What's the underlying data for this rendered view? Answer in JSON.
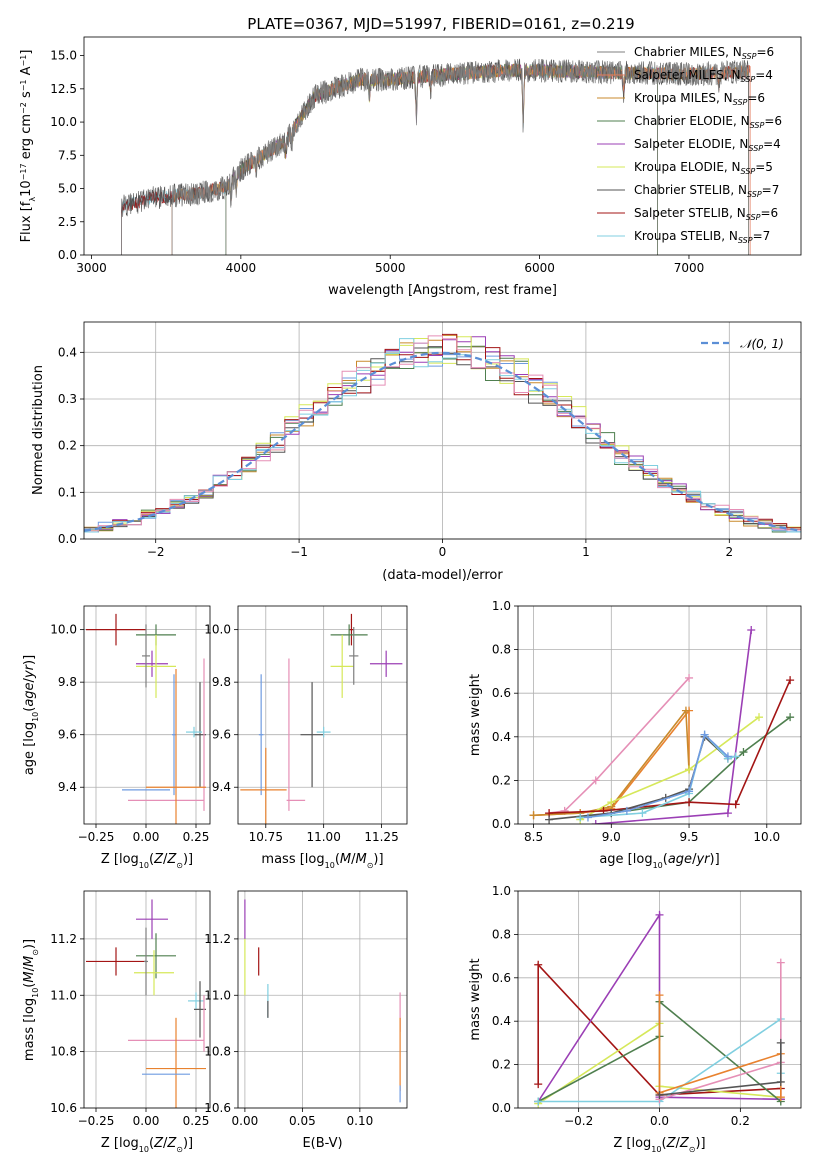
{
  "figure_title": "PLATE=0367, MJD=51997, FIBERID=0161, z=0.219",
  "colors": {
    "ChabrierMILES": "#7f7f7f",
    "SalpeterMILES": "#e37b5c",
    "KroupaMILES": "#c98a2c",
    "ChabrierELODIE": "#4f7f4f",
    "SalpeterELODIE": "#9b3fb5",
    "KroupaELODIE": "#d6e85a",
    "ChabrierSTELIB": "#555555",
    "SalpeterSTELIB": "#a31515",
    "KroupaSTELIB": "#80cfe0",
    "normal": "#5b8fd6",
    "pink": "#e58fb6",
    "blue": "#6f9be0",
    "orange": "#e8822f"
  },
  "chart_data": [
    {
      "id": "spectrum",
      "type": "line",
      "xlabel": "wavelength [Angstrom, rest frame]",
      "ylabel_parts": [
        "Flux [f",
        "λ",
        "10",
        "−17",
        " erg cm",
        "−2",
        " s",
        "−1",
        " A",
        "−1",
        "]"
      ],
      "xlim": [
        2950,
        7750
      ],
      "ylim": [
        0,
        16.4
      ],
      "xticks": [
        3000,
        4000,
        5000,
        6000,
        7000
      ],
      "yticks": [
        0.0,
        2.5,
        5.0,
        7.5,
        10.0,
        12.5,
        15.0
      ],
      "ytick_labels": [
        "0.0",
        "2.5",
        "5.0",
        "7.5",
        "10.0",
        "12.5",
        "15.0"
      ],
      "continuum": [
        [
          3200,
          3.6
        ],
        [
          3400,
          4.3
        ],
        [
          3700,
          4.6
        ],
        [
          3900,
          5.1
        ],
        [
          4000,
          6.4
        ],
        [
          4300,
          8.6
        ],
        [
          4500,
          12.0
        ],
        [
          4800,
          13.2
        ],
        [
          5000,
          13.2
        ],
        [
          5400,
          13.6
        ],
        [
          5800,
          13.9
        ],
        [
          6200,
          13.8
        ],
        [
          6600,
          13.7
        ],
        [
          7000,
          13.6
        ],
        [
          7400,
          13.8
        ]
      ],
      "legend": [
        {
          "key": "ChabrierMILES",
          "label": "Chabrier MILES, N",
          "sub": "SSP",
          "value": "=6"
        },
        {
          "key": "SalpeterMILES",
          "label": "Salpeter MILES, N",
          "sub": "SSP",
          "value": "=4"
        },
        {
          "key": "KroupaMILES",
          "label": "Kroupa MILES, N",
          "sub": "SSP",
          "value": "=6"
        },
        {
          "key": "ChabrierELODIE",
          "label": "Chabrier ELODIE, N",
          "sub": "SSP",
          "value": "=6"
        },
        {
          "key": "SalpeterELODIE",
          "label": "Salpeter ELODIE, N",
          "sub": "SSP",
          "value": "=4"
        },
        {
          "key": "KroupaELODIE",
          "label": "Kroupa ELODIE, N",
          "sub": "SSP",
          "value": "=5"
        },
        {
          "key": "ChabrierSTELIB",
          "label": "Chabrier STELIB, N",
          "sub": "SSP",
          "value": "=7"
        },
        {
          "key": "SalpeterSTELIB",
          "label": "Salpeter STELIB, N",
          "sub": "SSP",
          "value": "=6"
        },
        {
          "key": "KroupaSTELIB",
          "label": "Kroupa STELIB, N",
          "sub": "SSP",
          "value": "=7"
        }
      ]
    },
    {
      "id": "residuals",
      "type": "histogram",
      "xlabel": "(data-model)/error",
      "ylabel": "Normed distribution",
      "xlim": [
        -2.5,
        2.5
      ],
      "ylim": [
        0,
        0.465
      ],
      "xticks": [
        -2,
        -1,
        0,
        1,
        2
      ],
      "xtick_labels": [
        "−2",
        "−1",
        "0",
        "1",
        "2"
      ],
      "yticks": [
        0.0,
        0.1,
        0.2,
        0.3,
        0.4
      ],
      "ytick_labels": [
        "0.0",
        "0.1",
        "0.2",
        "0.3",
        "0.4"
      ],
      "bin_width": 0.1,
      "legend_label": "𝒩(0, 1)"
    },
    {
      "id": "age_vs_Z",
      "type": "errorbar",
      "xlabel": "Z [log10(Z/Z⊙)]",
      "ylabel": "age  [log10(age/yr)]",
      "xlim": [
        -0.31,
        0.32
      ],
      "ylim": [
        9.26,
        10.09
      ],
      "xticks": [
        -0.25,
        0.0,
        0.25
      ],
      "xtick_labels": [
        "−0.25",
        "0.00",
        "0.25"
      ],
      "yticks": [
        9.4,
        9.6,
        9.8,
        10.0
      ],
      "ytick_labels": [
        "9.4",
        "9.6",
        "9.8",
        "10.0"
      ]
    },
    {
      "id": "age_vs_mass",
      "type": "errorbar",
      "xlabel": "mass [log10(M/M⊙)]",
      "xlim": [
        10.63,
        11.36
      ],
      "ylim": [
        9.26,
        10.09
      ],
      "xticks": [
        10.75,
        11.0,
        11.25
      ],
      "xtick_labels": [
        "10.75",
        "11.00",
        "11.25"
      ],
      "yticks": [
        9.4,
        9.6,
        9.8,
        10.0
      ],
      "ytick_labels": [
        "9.4",
        "9.6",
        "9.8",
        "10.0"
      ]
    },
    {
      "id": "weight_vs_age",
      "type": "line",
      "xlabel": "age  [log10(age/yr)]",
      "ylabel": "mass weight",
      "xlim": [
        8.4,
        10.22
      ],
      "ylim": [
        0,
        1.0
      ],
      "xticks": [
        8.5,
        9.0,
        9.5,
        10.0
      ],
      "xtick_labels": [
        "8.5",
        "9.0",
        "9.5",
        "10.0"
      ],
      "yticks": [
        0.0,
        0.2,
        0.4,
        0.6,
        0.8,
        1.0
      ],
      "ytick_labels": [
        "0.0",
        "0.2",
        "0.4",
        "0.6",
        "0.8",
        "1.0"
      ],
      "series": [
        {
          "color": "pink",
          "x": [
            8.6,
            8.7,
            8.9,
            9.5
          ],
          "y": [
            0.05,
            0.06,
            0.2,
            0.67
          ]
        },
        {
          "color": "orange",
          "x": [
            8.5,
            8.8,
            9.0,
            9.5,
            9.5
          ],
          "y": [
            0.04,
            0.05,
            0.07,
            0.52,
            0.25
          ]
        },
        {
          "color": "KroupaMILES",
          "x": [
            8.5,
            8.8,
            9.0,
            9.48,
            9.5
          ],
          "y": [
            0.04,
            0.05,
            0.08,
            0.52,
            0.25
          ]
        },
        {
          "color": "KroupaELODIE",
          "x": [
            8.8,
            9.0,
            9.5,
            9.95
          ],
          "y": [
            0.02,
            0.1,
            0.25,
            0.49
          ]
        },
        {
          "color": "ChabrierELODIE",
          "x": [
            8.8,
            9.0,
            9.5,
            9.85,
            10.15
          ],
          "y": [
            0.03,
            0.05,
            0.1,
            0.33,
            0.49
          ]
        },
        {
          "color": "SalpeterELODIE",
          "x": [
            8.9,
            9.75,
            9.9
          ],
          "y": [
            0.0,
            0.05,
            0.89
          ]
        },
        {
          "color": "SalpeterSTELIB",
          "x": [
            8.6,
            8.95,
            9.5,
            9.8,
            10.15
          ],
          "y": [
            0.05,
            0.06,
            0.1,
            0.09,
            0.66
          ]
        },
        {
          "color": "ChabrierSTELIB",
          "x": [
            8.6,
            9.0,
            9.35,
            9.5,
            9.6,
            9.75
          ],
          "y": [
            0.02,
            0.05,
            0.12,
            0.16,
            0.4,
            0.3
          ]
        },
        {
          "color": "KroupaSTELIB",
          "x": [
            8.8,
            9.2,
            9.5,
            9.6,
            9.75,
            9.8
          ],
          "y": [
            0.03,
            0.05,
            0.14,
            0.41,
            0.3,
            0.31
          ]
        },
        {
          "color": "blue",
          "x": [
            8.85,
            9.1,
            9.5,
            9.6,
            9.75
          ],
          "y": [
            0.03,
            0.06,
            0.15,
            0.41,
            0.31
          ]
        }
      ]
    },
    {
      "id": "mass_vs_Z",
      "type": "errorbar",
      "xlabel": "Z [log10(Z/Z⊙)]",
      "ylabel": "mass [log10(M/M⊙)]",
      "xlim": [
        -0.31,
        0.32
      ],
      "ylim": [
        10.6,
        11.37
      ],
      "xticks": [
        -0.25,
        0.0,
        0.25
      ],
      "xtick_labels": [
        "−0.25",
        "0.00",
        "0.25"
      ],
      "yticks": [
        10.6,
        10.8,
        11.0,
        11.2
      ],
      "ytick_labels": [
        "10.6",
        "10.8",
        "11.0",
        "11.2"
      ]
    },
    {
      "id": "mass_vs_EBV",
      "type": "errorbar",
      "xlabel": "E(B-V)",
      "xlim": [
        -0.006,
        0.141
      ],
      "ylim": [
        10.6,
        11.37
      ],
      "xticks": [
        0.0,
        0.05,
        0.1
      ],
      "xtick_labels": [
        "0.00",
        "0.05",
        "0.10"
      ],
      "yticks": [
        10.6,
        10.8,
        11.0,
        11.2
      ],
      "ytick_labels": [
        "10.6",
        "10.8",
        "11.0",
        "11.2"
      ]
    },
    {
      "id": "weight_vs_Z",
      "type": "line",
      "xlabel": "Z [log10(Z/Z⊙)]",
      "ylabel": "mass weight",
      "xlim": [
        -0.35,
        0.35
      ],
      "ylim": [
        0,
        1.0
      ],
      "xticks": [
        -0.2,
        0.0,
        0.2
      ],
      "xtick_labels": [
        "−0.2",
        "0.0",
        "0.2"
      ],
      "yticks": [
        0.0,
        0.2,
        0.4,
        0.6,
        0.8,
        1.0
      ],
      "ytick_labels": [
        "0.0",
        "0.2",
        "0.4",
        "0.6",
        "0.8",
        "1.0"
      ],
      "series": [
        {
          "color": "SalpeterSTELIB",
          "x": [
            -0.3,
            -0.3,
            0.0,
            0.3,
            0.3
          ],
          "y": [
            0.11,
            0.66,
            0.06,
            0.09,
            0.04
          ]
        },
        {
          "color": "SalpeterELODIE",
          "x": [
            -0.3,
            0.0,
            0.0,
            0.3
          ],
          "y": [
            0.03,
            0.89,
            0.05,
            0.04
          ]
        },
        {
          "color": "KroupaELODIE",
          "x": [
            -0.3,
            0.0,
            0.0,
            0.3
          ],
          "y": [
            0.02,
            0.39,
            0.1,
            0.05
          ]
        },
        {
          "color": "ChabrierELODIE",
          "x": [
            -0.3,
            0.0,
            0.0,
            0.3
          ],
          "y": [
            0.03,
            0.33,
            0.49,
            0.03
          ]
        },
        {
          "color": "KroupaSTELIB",
          "x": [
            -0.3,
            0.0,
            0.3,
            0.3
          ],
          "y": [
            0.03,
            0.03,
            0.41,
            0.16
          ]
        },
        {
          "color": "pink",
          "x": [
            0.0,
            0.3,
            0.3
          ],
          "y": [
            0.04,
            0.21,
            0.67
          ]
        },
        {
          "color": "orange",
          "x": [
            0.0,
            0.0,
            0.3,
            0.3
          ],
          "y": [
            0.52,
            0.07,
            0.25,
            0.05
          ]
        },
        {
          "color": "ChabrierSTELIB",
          "x": [
            0.0,
            0.3,
            0.3
          ],
          "y": [
            0.06,
            0.12,
            0.3
          ]
        }
      ]
    }
  ],
  "errorbars": {
    "age_Z": [
      {
        "color": "SalpeterSTELIB",
        "x": -0.15,
        "y": 10.0,
        "xe": 0.15,
        "ye": 0.06
      },
      {
        "color": "ChabrierELODIE",
        "x": 0.05,
        "y": 9.98,
        "xe": 0.1,
        "ye": 0.04
      },
      {
        "color": "SalpeterELODIE",
        "x": 0.03,
        "y": 9.87,
        "xe": 0.08,
        "ye": 0.05
      },
      {
        "color": "KroupaELODIE",
        "x": 0.05,
        "y": 9.86,
        "xe": 0.1,
        "ye": 0.12
      },
      {
        "color": "ChabrierMILES",
        "x": 0.0,
        "y": 9.9,
        "xe": 0.02,
        "ye": 0.12
      },
      {
        "color": "blue",
        "x": 0.14,
        "y": 9.6,
        "xe": 0.01,
        "ye": 0.23
      },
      {
        "color": "ChabrierSTELIB",
        "x": 0.27,
        "y": 9.6,
        "xe": 0.03,
        "ye": 0.2
      },
      {
        "color": "KroupaSTELIB",
        "x": 0.24,
        "y": 9.61,
        "xe": 0.04,
        "ye": 0.02
      },
      {
        "color": "pink",
        "x": 0.1,
        "y": 9.35,
        "xe": 0.19,
        "ye": 0.0
      },
      {
        "color": "pink",
        "x": 0.29,
        "y": 9.6,
        "xe": 0.0,
        "ye": 0.29
      },
      {
        "color": "orange",
        "x": 0.15,
        "y": 9.4,
        "xe": 0.15,
        "ye": 0.45
      },
      {
        "color": "blue",
        "x": 0.0,
        "y": 9.39,
        "xe": 0.12,
        "ye": 0.0
      }
    ],
    "age_mass": [
      {
        "color": "SalpeterSTELIB",
        "x": 11.12,
        "y": 10.0,
        "xe": 0.01,
        "ye": 0.06
      },
      {
        "color": "ChabrierELODIE",
        "x": 11.11,
        "y": 9.98,
        "xe": 0.08,
        "ye": 0.04
      },
      {
        "color": "SalpeterELODIE",
        "x": 11.27,
        "y": 9.87,
        "xe": 0.07,
        "ye": 0.05
      },
      {
        "color": "KroupaELODIE",
        "x": 11.08,
        "y": 9.86,
        "xe": 0.05,
        "ye": 0.12
      },
      {
        "color": "ChabrierMILES",
        "x": 11.13,
        "y": 9.9,
        "xe": 0.02,
        "ye": 0.11
      },
      {
        "color": "ChabrierSTELIB",
        "x": 10.95,
        "y": 9.6,
        "xe": 0.05,
        "ye": 0.2
      },
      {
        "color": "KroupaSTELIB",
        "x": 11.0,
        "y": 9.61,
        "xe": 0.03,
        "ye": 0.02
      },
      {
        "color": "blue",
        "x": 10.73,
        "y": 9.6,
        "xe": 0.01,
        "ye": 0.23
      },
      {
        "color": "pink",
        "x": 10.85,
        "y": 9.6,
        "xe": 0.0,
        "ye": 0.29
      },
      {
        "color": "pink",
        "x": 10.88,
        "y": 9.35,
        "xe": 0.04,
        "ye": 0.0
      },
      {
        "color": "orange",
        "x": 10.74,
        "y": 9.39,
        "xe": 0.1,
        "ye": 0.0
      },
      {
        "color": "orange",
        "x": 10.75,
        "y": 9.4,
        "xe": 0.0,
        "ye": 0.15
      }
    ],
    "mass_Z": [
      {
        "color": "SalpeterSTELIB",
        "x": -0.15,
        "y": 11.12,
        "xe": 0.15,
        "ye": 0.05
      },
      {
        "color": "SalpeterELODIE",
        "x": 0.03,
        "y": 11.27,
        "xe": 0.08,
        "ye": 0.07
      },
      {
        "color": "ChabrierELODIE",
        "x": 0.05,
        "y": 11.14,
        "xe": 0.1,
        "ye": 0.08
      },
      {
        "color": "KroupaELODIE",
        "x": 0.04,
        "y": 11.08,
        "xe": 0.1,
        "ye": 0.08
      },
      {
        "color": "ChabrierMILES",
        "x": 0.0,
        "y": 11.12,
        "xe": 0.01,
        "ye": 0.12
      },
      {
        "color": "KroupaSTELIB",
        "x": 0.25,
        "y": 10.98,
        "xe": 0.04,
        "ye": 0.03
      },
      {
        "color": "ChabrierSTELIB",
        "x": 0.27,
        "y": 10.95,
        "xe": 0.03,
        "ye": 0.1
      },
      {
        "color": "pink",
        "x": 0.1,
        "y": 10.84,
        "xe": 0.19,
        "ye": 0.0
      },
      {
        "color": "pink",
        "x": 0.29,
        "y": 10.9,
        "xe": 0.0,
        "ye": 0.1
      },
      {
        "color": "orange",
        "x": 0.15,
        "y": 10.74,
        "xe": 0.15,
        "ye": 0.18
      },
      {
        "color": "blue",
        "x": 0.1,
        "y": 10.72,
        "xe": 0.12,
        "ye": 0.0
      }
    ],
    "mass_EBV": [
      {
        "color": "SalpeterELODIE",
        "x": 0.0,
        "y": 11.27,
        "xe": 0.0,
        "ye": 0.07
      },
      {
        "color": "KroupaELODIE",
        "x": 0.0,
        "y": 11.1,
        "xe": 0.0,
        "ye": 0.1
      },
      {
        "color": "SalpeterSTELIB",
        "x": 0.012,
        "y": 11.12,
        "xe": 0.0,
        "ye": 0.05
      },
      {
        "color": "KroupaSTELIB",
        "x": 0.02,
        "y": 10.98,
        "xe": 0.0,
        "ye": 0.06
      },
      {
        "color": "ChabrierSTELIB",
        "x": 0.02,
        "y": 10.95,
        "xe": 0.0,
        "ye": 0.03
      },
      {
        "color": "pink",
        "x": 0.135,
        "y": 10.94,
        "xe": 0.0,
        "ye": 0.07
      },
      {
        "color": "orange",
        "x": 0.135,
        "y": 10.79,
        "xe": 0.0,
        "ye": 0.13
      },
      {
        "color": "blue",
        "x": 0.135,
        "y": 10.65,
        "xe": 0.0,
        "ye": 0.03
      }
    ]
  }
}
